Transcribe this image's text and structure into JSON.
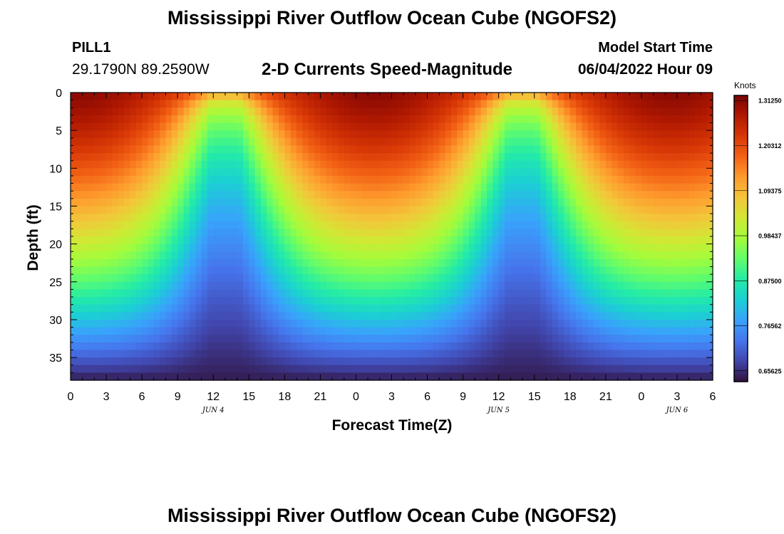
{
  "header": {
    "title": "Mississippi River Outflow Ocean Cube (NGOFS2)",
    "station": "PILL1",
    "coordinates": "29.1790N  89.2590W",
    "subtitle": "2-D Currents Speed-Magnitude",
    "model_start_label": "Model Start Time",
    "model_start_value": "06/04/2022 Hour 09"
  },
  "footer": {
    "title_repeat": "Mississippi River Outflow Ocean Cube (NGOFS2)"
  },
  "chart_data": {
    "type": "heatmap",
    "xlabel": "Forecast Time(Z)",
    "ylabel": "Depth (ft)",
    "x_tick_labels": [
      "0",
      "3",
      "6",
      "9",
      "12",
      "15",
      "18",
      "21",
      "0",
      "3",
      "6",
      "9",
      "12",
      "15",
      "18",
      "21",
      "0",
      "3",
      "6"
    ],
    "x_range_hours": [
      0,
      54
    ],
    "date_labels": [
      {
        "label": "JUN 4",
        "hour": 12
      },
      {
        "label": "JUN 5",
        "hour": 36
      },
      {
        "label": "JUN 6",
        "hour": 51
      }
    ],
    "y_ticks": [
      0,
      5,
      10,
      15,
      20,
      25,
      30,
      35
    ],
    "y_range": [
      0,
      38
    ],
    "y_inverted": true,
    "colorbar": {
      "unit": "Knots",
      "range": [
        0.63,
        1.325
      ],
      "tick_labels": [
        "1.31250",
        "1.20312",
        "1.09375",
        "0.98437",
        "0.87500",
        "0.76562",
        "0.65625"
      ],
      "tick_values": [
        1.3125,
        1.203125,
        1.09375,
        0.984375,
        0.875,
        0.765625,
        0.65625
      ],
      "colors": [
        "#30123b",
        "#4145ab",
        "#4675ed",
        "#39a2fc",
        "#1bcfd4",
        "#24eca6",
        "#61fc6c",
        "#a4fc3b",
        "#d1e834",
        "#f3c63a",
        "#fe9b2d",
        "#f36315",
        "#d93806",
        "#b11901",
        "#7a0403"
      ]
    },
    "speed_field": {
      "period_hours": 25,
      "calm_center_hours": [
        13,
        38
      ],
      "surface_max": 1.31,
      "surface_min": 1.1,
      "bottom_min": 0.64
    }
  }
}
